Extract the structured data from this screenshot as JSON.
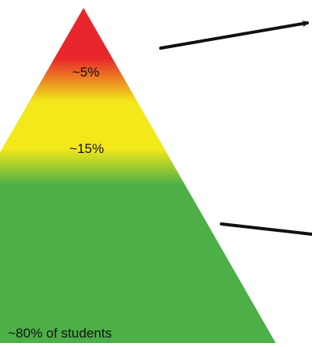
{
  "tiers": [
    {
      "label": "~5%",
      "color": "#e8262b"
    },
    {
      "label": "~15%",
      "color": "#f2e81a"
    },
    {
      "label": "~80% of students",
      "color": "#4caf47"
    }
  ],
  "colors": {
    "red": "#e8262b",
    "yellow": "#f2e81a",
    "green": "#4caf47",
    "arrow": "#111111"
  }
}
